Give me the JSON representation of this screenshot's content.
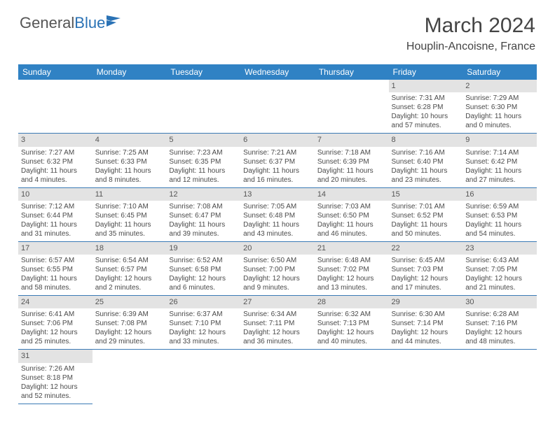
{
  "logo": {
    "part1": "General",
    "part2": "Blue"
  },
  "title": "March 2024",
  "location": "Houplin-Ancoisne, France",
  "colors": {
    "header_bg": "#3082c4",
    "header_text": "#ffffff",
    "daynum_bg": "#e3e3e3",
    "border": "#3a7ab5",
    "logo_blue": "#2a72b5"
  },
  "weekdays": [
    "Sunday",
    "Monday",
    "Tuesday",
    "Wednesday",
    "Thursday",
    "Friday",
    "Saturday"
  ],
  "weeks": [
    [
      null,
      null,
      null,
      null,
      null,
      {
        "n": "1",
        "sr": "Sunrise: 7:31 AM",
        "ss": "Sunset: 6:28 PM",
        "dl1": "Daylight: 10 hours",
        "dl2": "and 57 minutes."
      },
      {
        "n": "2",
        "sr": "Sunrise: 7:29 AM",
        "ss": "Sunset: 6:30 PM",
        "dl1": "Daylight: 11 hours",
        "dl2": "and 0 minutes."
      }
    ],
    [
      {
        "n": "3",
        "sr": "Sunrise: 7:27 AM",
        "ss": "Sunset: 6:32 PM",
        "dl1": "Daylight: 11 hours",
        "dl2": "and 4 minutes."
      },
      {
        "n": "4",
        "sr": "Sunrise: 7:25 AM",
        "ss": "Sunset: 6:33 PM",
        "dl1": "Daylight: 11 hours",
        "dl2": "and 8 minutes."
      },
      {
        "n": "5",
        "sr": "Sunrise: 7:23 AM",
        "ss": "Sunset: 6:35 PM",
        "dl1": "Daylight: 11 hours",
        "dl2": "and 12 minutes."
      },
      {
        "n": "6",
        "sr": "Sunrise: 7:21 AM",
        "ss": "Sunset: 6:37 PM",
        "dl1": "Daylight: 11 hours",
        "dl2": "and 16 minutes."
      },
      {
        "n": "7",
        "sr": "Sunrise: 7:18 AM",
        "ss": "Sunset: 6:39 PM",
        "dl1": "Daylight: 11 hours",
        "dl2": "and 20 minutes."
      },
      {
        "n": "8",
        "sr": "Sunrise: 7:16 AM",
        "ss": "Sunset: 6:40 PM",
        "dl1": "Daylight: 11 hours",
        "dl2": "and 23 minutes."
      },
      {
        "n": "9",
        "sr": "Sunrise: 7:14 AM",
        "ss": "Sunset: 6:42 PM",
        "dl1": "Daylight: 11 hours",
        "dl2": "and 27 minutes."
      }
    ],
    [
      {
        "n": "10",
        "sr": "Sunrise: 7:12 AM",
        "ss": "Sunset: 6:44 PM",
        "dl1": "Daylight: 11 hours",
        "dl2": "and 31 minutes."
      },
      {
        "n": "11",
        "sr": "Sunrise: 7:10 AM",
        "ss": "Sunset: 6:45 PM",
        "dl1": "Daylight: 11 hours",
        "dl2": "and 35 minutes."
      },
      {
        "n": "12",
        "sr": "Sunrise: 7:08 AM",
        "ss": "Sunset: 6:47 PM",
        "dl1": "Daylight: 11 hours",
        "dl2": "and 39 minutes."
      },
      {
        "n": "13",
        "sr": "Sunrise: 7:05 AM",
        "ss": "Sunset: 6:48 PM",
        "dl1": "Daylight: 11 hours",
        "dl2": "and 43 minutes."
      },
      {
        "n": "14",
        "sr": "Sunrise: 7:03 AM",
        "ss": "Sunset: 6:50 PM",
        "dl1": "Daylight: 11 hours",
        "dl2": "and 46 minutes."
      },
      {
        "n": "15",
        "sr": "Sunrise: 7:01 AM",
        "ss": "Sunset: 6:52 PM",
        "dl1": "Daylight: 11 hours",
        "dl2": "and 50 minutes."
      },
      {
        "n": "16",
        "sr": "Sunrise: 6:59 AM",
        "ss": "Sunset: 6:53 PM",
        "dl1": "Daylight: 11 hours",
        "dl2": "and 54 minutes."
      }
    ],
    [
      {
        "n": "17",
        "sr": "Sunrise: 6:57 AM",
        "ss": "Sunset: 6:55 PM",
        "dl1": "Daylight: 11 hours",
        "dl2": "and 58 minutes."
      },
      {
        "n": "18",
        "sr": "Sunrise: 6:54 AM",
        "ss": "Sunset: 6:57 PM",
        "dl1": "Daylight: 12 hours",
        "dl2": "and 2 minutes."
      },
      {
        "n": "19",
        "sr": "Sunrise: 6:52 AM",
        "ss": "Sunset: 6:58 PM",
        "dl1": "Daylight: 12 hours",
        "dl2": "and 6 minutes."
      },
      {
        "n": "20",
        "sr": "Sunrise: 6:50 AM",
        "ss": "Sunset: 7:00 PM",
        "dl1": "Daylight: 12 hours",
        "dl2": "and 9 minutes."
      },
      {
        "n": "21",
        "sr": "Sunrise: 6:48 AM",
        "ss": "Sunset: 7:02 PM",
        "dl1": "Daylight: 12 hours",
        "dl2": "and 13 minutes."
      },
      {
        "n": "22",
        "sr": "Sunrise: 6:45 AM",
        "ss": "Sunset: 7:03 PM",
        "dl1": "Daylight: 12 hours",
        "dl2": "and 17 minutes."
      },
      {
        "n": "23",
        "sr": "Sunrise: 6:43 AM",
        "ss": "Sunset: 7:05 PM",
        "dl1": "Daylight: 12 hours",
        "dl2": "and 21 minutes."
      }
    ],
    [
      {
        "n": "24",
        "sr": "Sunrise: 6:41 AM",
        "ss": "Sunset: 7:06 PM",
        "dl1": "Daylight: 12 hours",
        "dl2": "and 25 minutes."
      },
      {
        "n": "25",
        "sr": "Sunrise: 6:39 AM",
        "ss": "Sunset: 7:08 PM",
        "dl1": "Daylight: 12 hours",
        "dl2": "and 29 minutes."
      },
      {
        "n": "26",
        "sr": "Sunrise: 6:37 AM",
        "ss": "Sunset: 7:10 PM",
        "dl1": "Daylight: 12 hours",
        "dl2": "and 33 minutes."
      },
      {
        "n": "27",
        "sr": "Sunrise: 6:34 AM",
        "ss": "Sunset: 7:11 PM",
        "dl1": "Daylight: 12 hours",
        "dl2": "and 36 minutes."
      },
      {
        "n": "28",
        "sr": "Sunrise: 6:32 AM",
        "ss": "Sunset: 7:13 PM",
        "dl1": "Daylight: 12 hours",
        "dl2": "and 40 minutes."
      },
      {
        "n": "29",
        "sr": "Sunrise: 6:30 AM",
        "ss": "Sunset: 7:14 PM",
        "dl1": "Daylight: 12 hours",
        "dl2": "and 44 minutes."
      },
      {
        "n": "30",
        "sr": "Sunrise: 6:28 AM",
        "ss": "Sunset: 7:16 PM",
        "dl1": "Daylight: 12 hours",
        "dl2": "and 48 minutes."
      }
    ],
    [
      {
        "n": "31",
        "sr": "Sunrise: 7:26 AM",
        "ss": "Sunset: 8:18 PM",
        "dl1": "Daylight: 12 hours",
        "dl2": "and 52 minutes."
      },
      null,
      null,
      null,
      null,
      null,
      null
    ]
  ]
}
